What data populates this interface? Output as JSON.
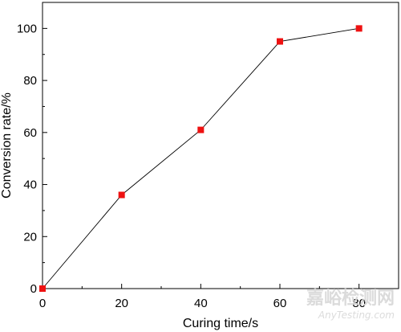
{
  "chart_data": {
    "type": "line",
    "title": "",
    "xlabel": "Curing time/s",
    "ylabel": "Conversion rate/%",
    "x": [
      0,
      20,
      40,
      60,
      80
    ],
    "series": [
      {
        "values": [
          0,
          36,
          61,
          95,
          100
        ]
      }
    ],
    "xlim": [
      0,
      90
    ],
    "ylim": [
      0,
      110
    ],
    "xticks": [
      0,
      20,
      40,
      60,
      80
    ],
    "yticks": [
      0,
      20,
      40,
      60,
      80,
      100
    ],
    "marker": "square",
    "marker_color": "#ee1111",
    "line_color": "#000000",
    "grid": false,
    "legend": "none"
  },
  "watermark": {
    "text": "嘉峪检测网",
    "sub": "AnyTesting.com"
  }
}
